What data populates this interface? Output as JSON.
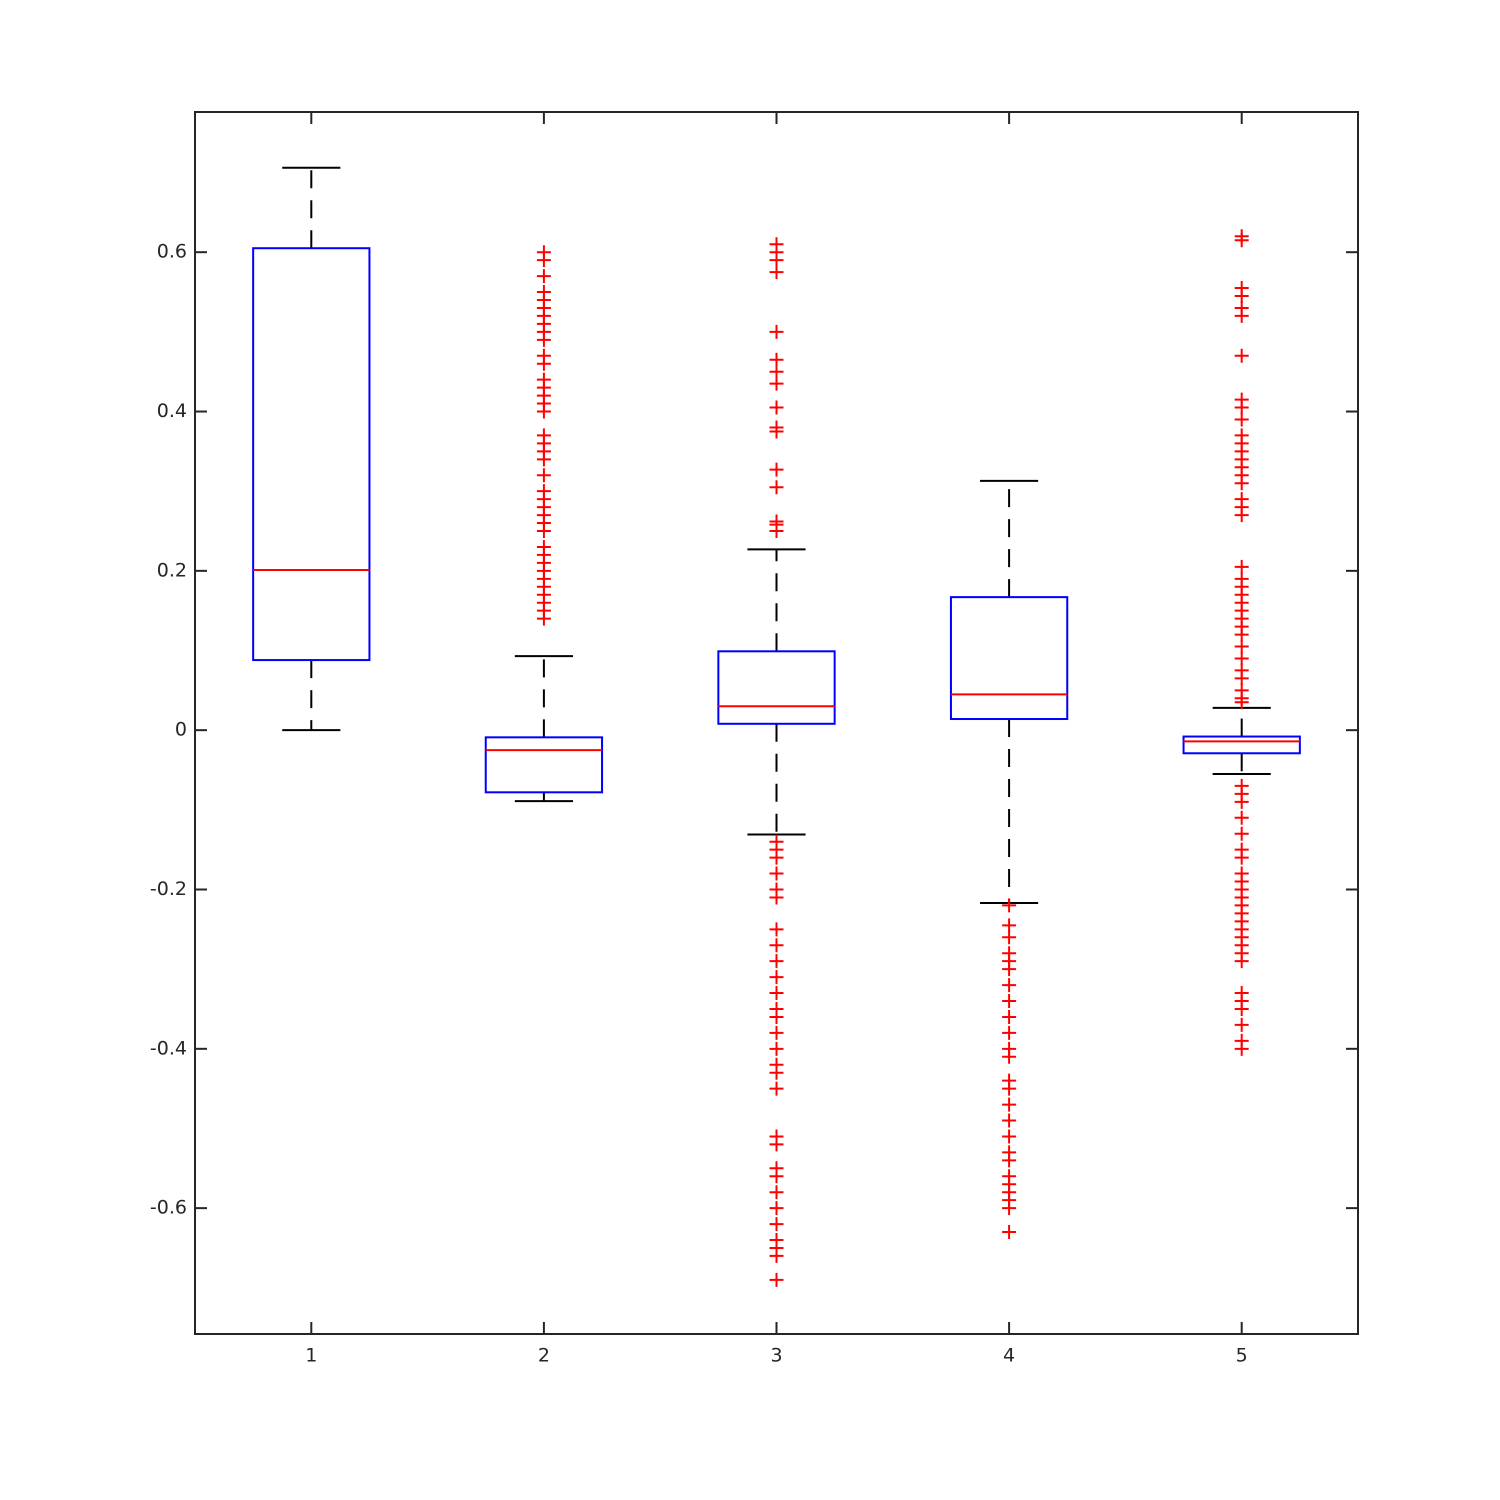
{
  "chart_data": {
    "type": "box",
    "categories": [
      "1",
      "2",
      "3",
      "4",
      "5"
    ],
    "xlim": [
      0.5,
      5.5
    ],
    "ylim": [
      -0.758,
      0.776
    ],
    "yticks": [
      -0.6,
      -0.4,
      -0.2,
      0,
      0.2,
      0.4,
      0.6
    ],
    "box_color": "#0000ff",
    "median_color": "#ff0000",
    "whisker_color": "#000000",
    "outlier_color": "#ff0000",
    "boxes": [
      {
        "whisker_low": 0,
        "q1": 0.088,
        "median": 0.201,
        "q3": 0.605,
        "whisker_high": 0.706,
        "outliers": []
      },
      {
        "whisker_low": -0.089,
        "q1": -0.078,
        "median": -0.025,
        "q3": -0.009,
        "whisker_high": 0.093,
        "outliers": [
          0.6,
          0.59,
          0.57,
          0.55,
          0.54,
          0.53,
          0.52,
          0.51,
          0.5,
          0.49,
          0.47,
          0.46,
          0.44,
          0.43,
          0.42,
          0.41,
          0.4,
          0.37,
          0.36,
          0.35,
          0.34,
          0.32,
          0.3,
          0.29,
          0.28,
          0.27,
          0.26,
          0.25,
          0.23,
          0.22,
          0.21,
          0.2,
          0.19,
          0.18,
          0.17,
          0.16,
          0.15,
          0.14
        ]
      },
      {
        "whisker_low": -0.131,
        "q1": 0.008,
        "median": 0.03,
        "q3": 0.099,
        "whisker_high": 0.227,
        "outliers": [
          0.61,
          0.6,
          0.59,
          0.575,
          0.5,
          0.465,
          0.45,
          0.435,
          0.405,
          0.38,
          0.375,
          0.327,
          0.305,
          0.262,
          0.258,
          0.25,
          -0.14,
          -0.15,
          -0.16,
          -0.18,
          -0.2,
          -0.21,
          -0.25,
          -0.27,
          -0.29,
          -0.31,
          -0.33,
          -0.35,
          -0.36,
          -0.38,
          -0.4,
          -0.42,
          -0.43,
          -0.45,
          -0.51,
          -0.52,
          -0.55,
          -0.56,
          -0.58,
          -0.6,
          -0.62,
          -0.64,
          -0.65,
          -0.66,
          -0.69
        ]
      },
      {
        "whisker_low": -0.217,
        "q1": 0.014,
        "median": 0.045,
        "q3": 0.167,
        "whisker_high": 0.313,
        "outliers": [
          -0.22,
          -0.245,
          -0.26,
          -0.28,
          -0.29,
          -0.3,
          -0.32,
          -0.34,
          -0.36,
          -0.38,
          -0.4,
          -0.41,
          -0.44,
          -0.45,
          -0.47,
          -0.49,
          -0.51,
          -0.53,
          -0.54,
          -0.56,
          -0.57,
          -0.58,
          -0.59,
          -0.6,
          -0.63
        ]
      },
      {
        "whisker_low": -0.055,
        "q1": -0.029,
        "median": -0.014,
        "q3": -0.008,
        "whisker_high": 0.028,
        "outliers": [
          0.62,
          0.615,
          0.555,
          0.545,
          0.53,
          0.52,
          0.47,
          0.415,
          0.405,
          0.39,
          0.37,
          0.36,
          0.35,
          0.34,
          0.33,
          0.32,
          0.31,
          0.29,
          0.28,
          0.27,
          0.205,
          0.19,
          0.18,
          0.17,
          0.16,
          0.15,
          0.14,
          0.13,
          0.12,
          0.105,
          0.09,
          0.075,
          0.065,
          0.05,
          0.04,
          0.035,
          -0.07,
          -0.08,
          -0.09,
          -0.11,
          -0.13,
          -0.15,
          -0.16,
          -0.18,
          -0.19,
          -0.2,
          -0.21,
          -0.22,
          -0.23,
          -0.24,
          -0.25,
          -0.26,
          -0.27,
          -0.28,
          -0.29,
          -0.33,
          -0.34,
          -0.35,
          -0.37,
          -0.39,
          -0.4
        ]
      }
    ]
  }
}
